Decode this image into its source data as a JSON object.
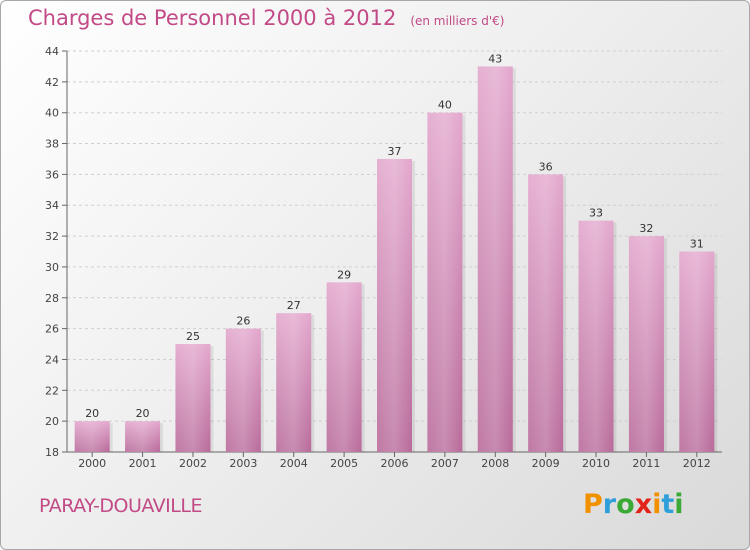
{
  "header": {
    "title": "Charges de Personnel 2000 à 2012",
    "subtitle": "(en milliers d'€)"
  },
  "footer": {
    "town": "PARAY-DOUAVILLE",
    "logo": {
      "letters": [
        "P",
        "r",
        "o",
        "x",
        "i",
        "t",
        "i"
      ],
      "colors": [
        "#f29100",
        "#2f9fd9",
        "#3aa935",
        "#e2231a",
        "#f29100",
        "#2f9fd9",
        "#3aa935"
      ]
    }
  },
  "colors": {
    "bar": "#cc6fa6",
    "title": "#c24a86"
  },
  "chart_data": {
    "type": "bar",
    "title": "Charges de Personnel 2000 à 2012",
    "subtitle": "(en milliers d'€)",
    "categories": [
      "2000",
      "2001",
      "2002",
      "2003",
      "2004",
      "2005",
      "2006",
      "2007",
      "2008",
      "2009",
      "2010",
      "2011",
      "2012"
    ],
    "values": [
      20,
      20,
      25,
      26,
      27,
      29,
      37,
      40,
      43,
      36,
      33,
      32,
      31
    ],
    "ylim": [
      18,
      44
    ],
    "yticks": [
      18,
      20,
      22,
      24,
      26,
      28,
      30,
      32,
      34,
      36,
      38,
      40,
      42,
      44
    ],
    "grid": true,
    "legend": "none"
  }
}
